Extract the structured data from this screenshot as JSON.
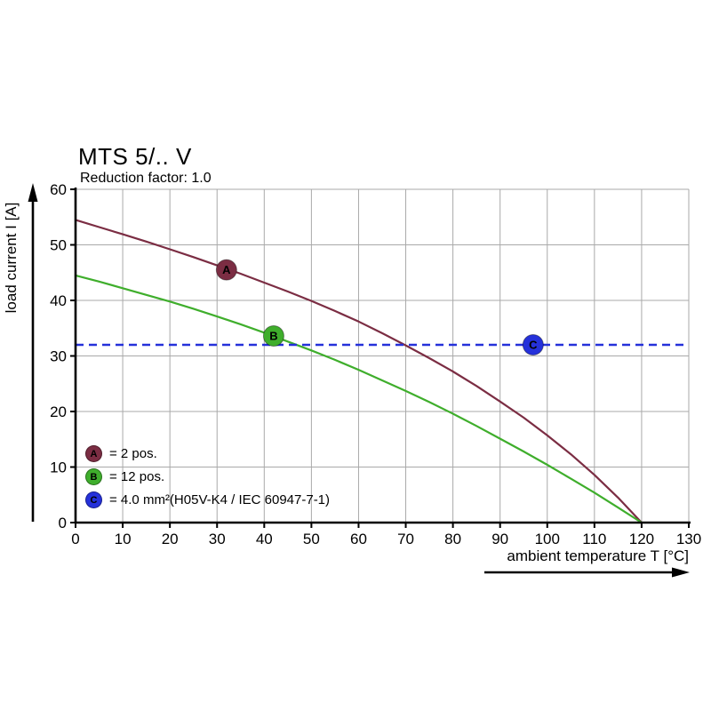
{
  "chart_data": {
    "type": "line",
    "title": "MTS 5/.. V",
    "subtitle": "Reduction factor: 1.0",
    "xlabel": "ambient temperature T [°C]",
    "ylabel": "load current I [A]",
    "xlim": [
      0,
      130
    ],
    "ylim": [
      0,
      60
    ],
    "xticks": [
      0,
      10,
      20,
      30,
      40,
      50,
      60,
      70,
      80,
      90,
      100,
      110,
      120,
      130
    ],
    "yticks": [
      0,
      10,
      20,
      30,
      40,
      50,
      60
    ],
    "grid": true,
    "grid_color": "#a9a9a9",
    "axis_color": "#000000",
    "series": [
      {
        "id": "A",
        "legend_label": "= 2 pos.",
        "color": "#7b2d43",
        "marker": {
          "x": 32,
          "y": 45.5
        },
        "points": [
          [
            0,
            54.5
          ],
          [
            5,
            53.2
          ],
          [
            10,
            51.9
          ],
          [
            15,
            50.6
          ],
          [
            20,
            49.2
          ],
          [
            25,
            47.8
          ],
          [
            30,
            46.3
          ],
          [
            35,
            44.8
          ],
          [
            40,
            43.2
          ],
          [
            45,
            41.6
          ],
          [
            50,
            39.9
          ],
          [
            55,
            38.1
          ],
          [
            60,
            36.2
          ],
          [
            65,
            34.1
          ],
          [
            70,
            31.9
          ],
          [
            75,
            29.6
          ],
          [
            80,
            27.2
          ],
          [
            85,
            24.6
          ],
          [
            90,
            21.8
          ],
          [
            95,
            18.9
          ],
          [
            100,
            15.7
          ],
          [
            105,
            12.3
          ],
          [
            110,
            8.6
          ],
          [
            115,
            4.5
          ],
          [
            120,
            0
          ]
        ]
      },
      {
        "id": "B",
        "legend_label": "= 12 pos.",
        "color": "#3fae2c",
        "marker": {
          "x": 42,
          "y": 33.6
        },
        "points": [
          [
            0,
            44.5
          ],
          [
            5,
            43.4
          ],
          [
            10,
            42.2
          ],
          [
            15,
            41.0
          ],
          [
            20,
            39.8
          ],
          [
            25,
            38.5
          ],
          [
            30,
            37.1
          ],
          [
            35,
            35.7
          ],
          [
            40,
            34.2
          ],
          [
            45,
            32.6
          ],
          [
            50,
            31.0
          ],
          [
            55,
            29.3
          ],
          [
            60,
            27.5
          ],
          [
            65,
            25.6
          ],
          [
            70,
            23.7
          ],
          [
            75,
            21.7
          ],
          [
            80,
            19.6
          ],
          [
            85,
            17.4
          ],
          [
            90,
            15.1
          ],
          [
            95,
            12.8
          ],
          [
            100,
            10.4
          ],
          [
            105,
            7.9
          ],
          [
            110,
            5.4
          ],
          [
            115,
            2.7
          ],
          [
            120,
            0
          ]
        ]
      },
      {
        "id": "C",
        "legend_label": "= 4.0 mm²(H05V-K4 / IEC 60947-7-1)",
        "color": "#2531da",
        "dashed": true,
        "hline": 32,
        "marker": {
          "x": 97,
          "y": 32
        }
      }
    ]
  }
}
